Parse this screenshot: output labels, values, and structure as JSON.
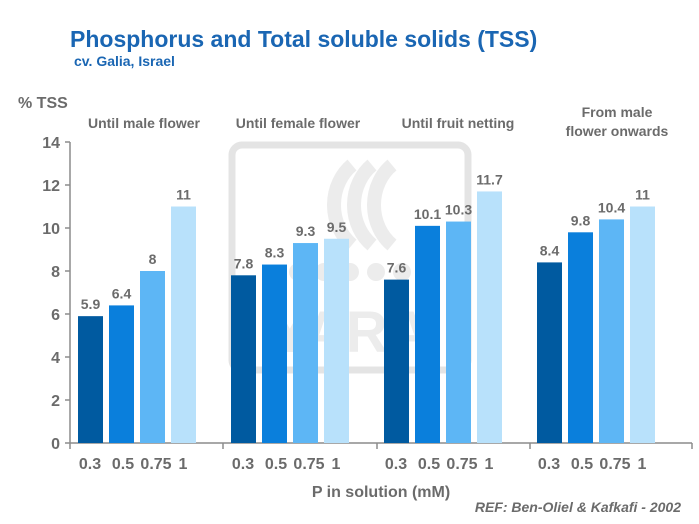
{
  "title": "Phosphorus and Total soluble solids (TSS)",
  "subtitle": "cv. Galia, Israel",
  "reference": "REF: Ben-Oliel & Kafkafi - 2002",
  "watermark": "YARA",
  "colors": {
    "title": "#1a66b3",
    "text": "#6b6b6b",
    "series": [
      "#005aa0",
      "#0a7fdc",
      "#5db6f5",
      "#b8e1fb"
    ]
  },
  "chart_data": {
    "type": "bar",
    "ylabel": "% TSS",
    "xlabel": "P in solution (mM)",
    "ylim": [
      0,
      14
    ],
    "yticks": [
      0,
      2,
      4,
      6,
      8,
      10,
      12,
      14
    ],
    "x_tick_labels": [
      "0.3",
      "0.5",
      "0.75",
      "1"
    ],
    "groups": [
      {
        "label": "Until male flower",
        "values": [
          5.9,
          6.4,
          8,
          11
        ],
        "value_labels": [
          "5.9",
          "6.4",
          "8",
          "11"
        ]
      },
      {
        "label": "Until female flower",
        "values": [
          7.8,
          8.3,
          9.3,
          9.5
        ],
        "value_labels": [
          "7.8",
          "8.3",
          "9.3",
          "9.5"
        ]
      },
      {
        "label": "Until fruit netting",
        "values": [
          7.6,
          10.1,
          10.3,
          11.7
        ],
        "value_labels": [
          "7.6",
          "10.1",
          "10.3",
          "11.7"
        ]
      },
      {
        "label": "From male flower onwards",
        "values": [
          8.4,
          9.8,
          10.4,
          11
        ],
        "value_labels": [
          "8.4",
          "9.8",
          "10.4",
          "11"
        ]
      }
    ],
    "grid": false,
    "legend": "none"
  }
}
